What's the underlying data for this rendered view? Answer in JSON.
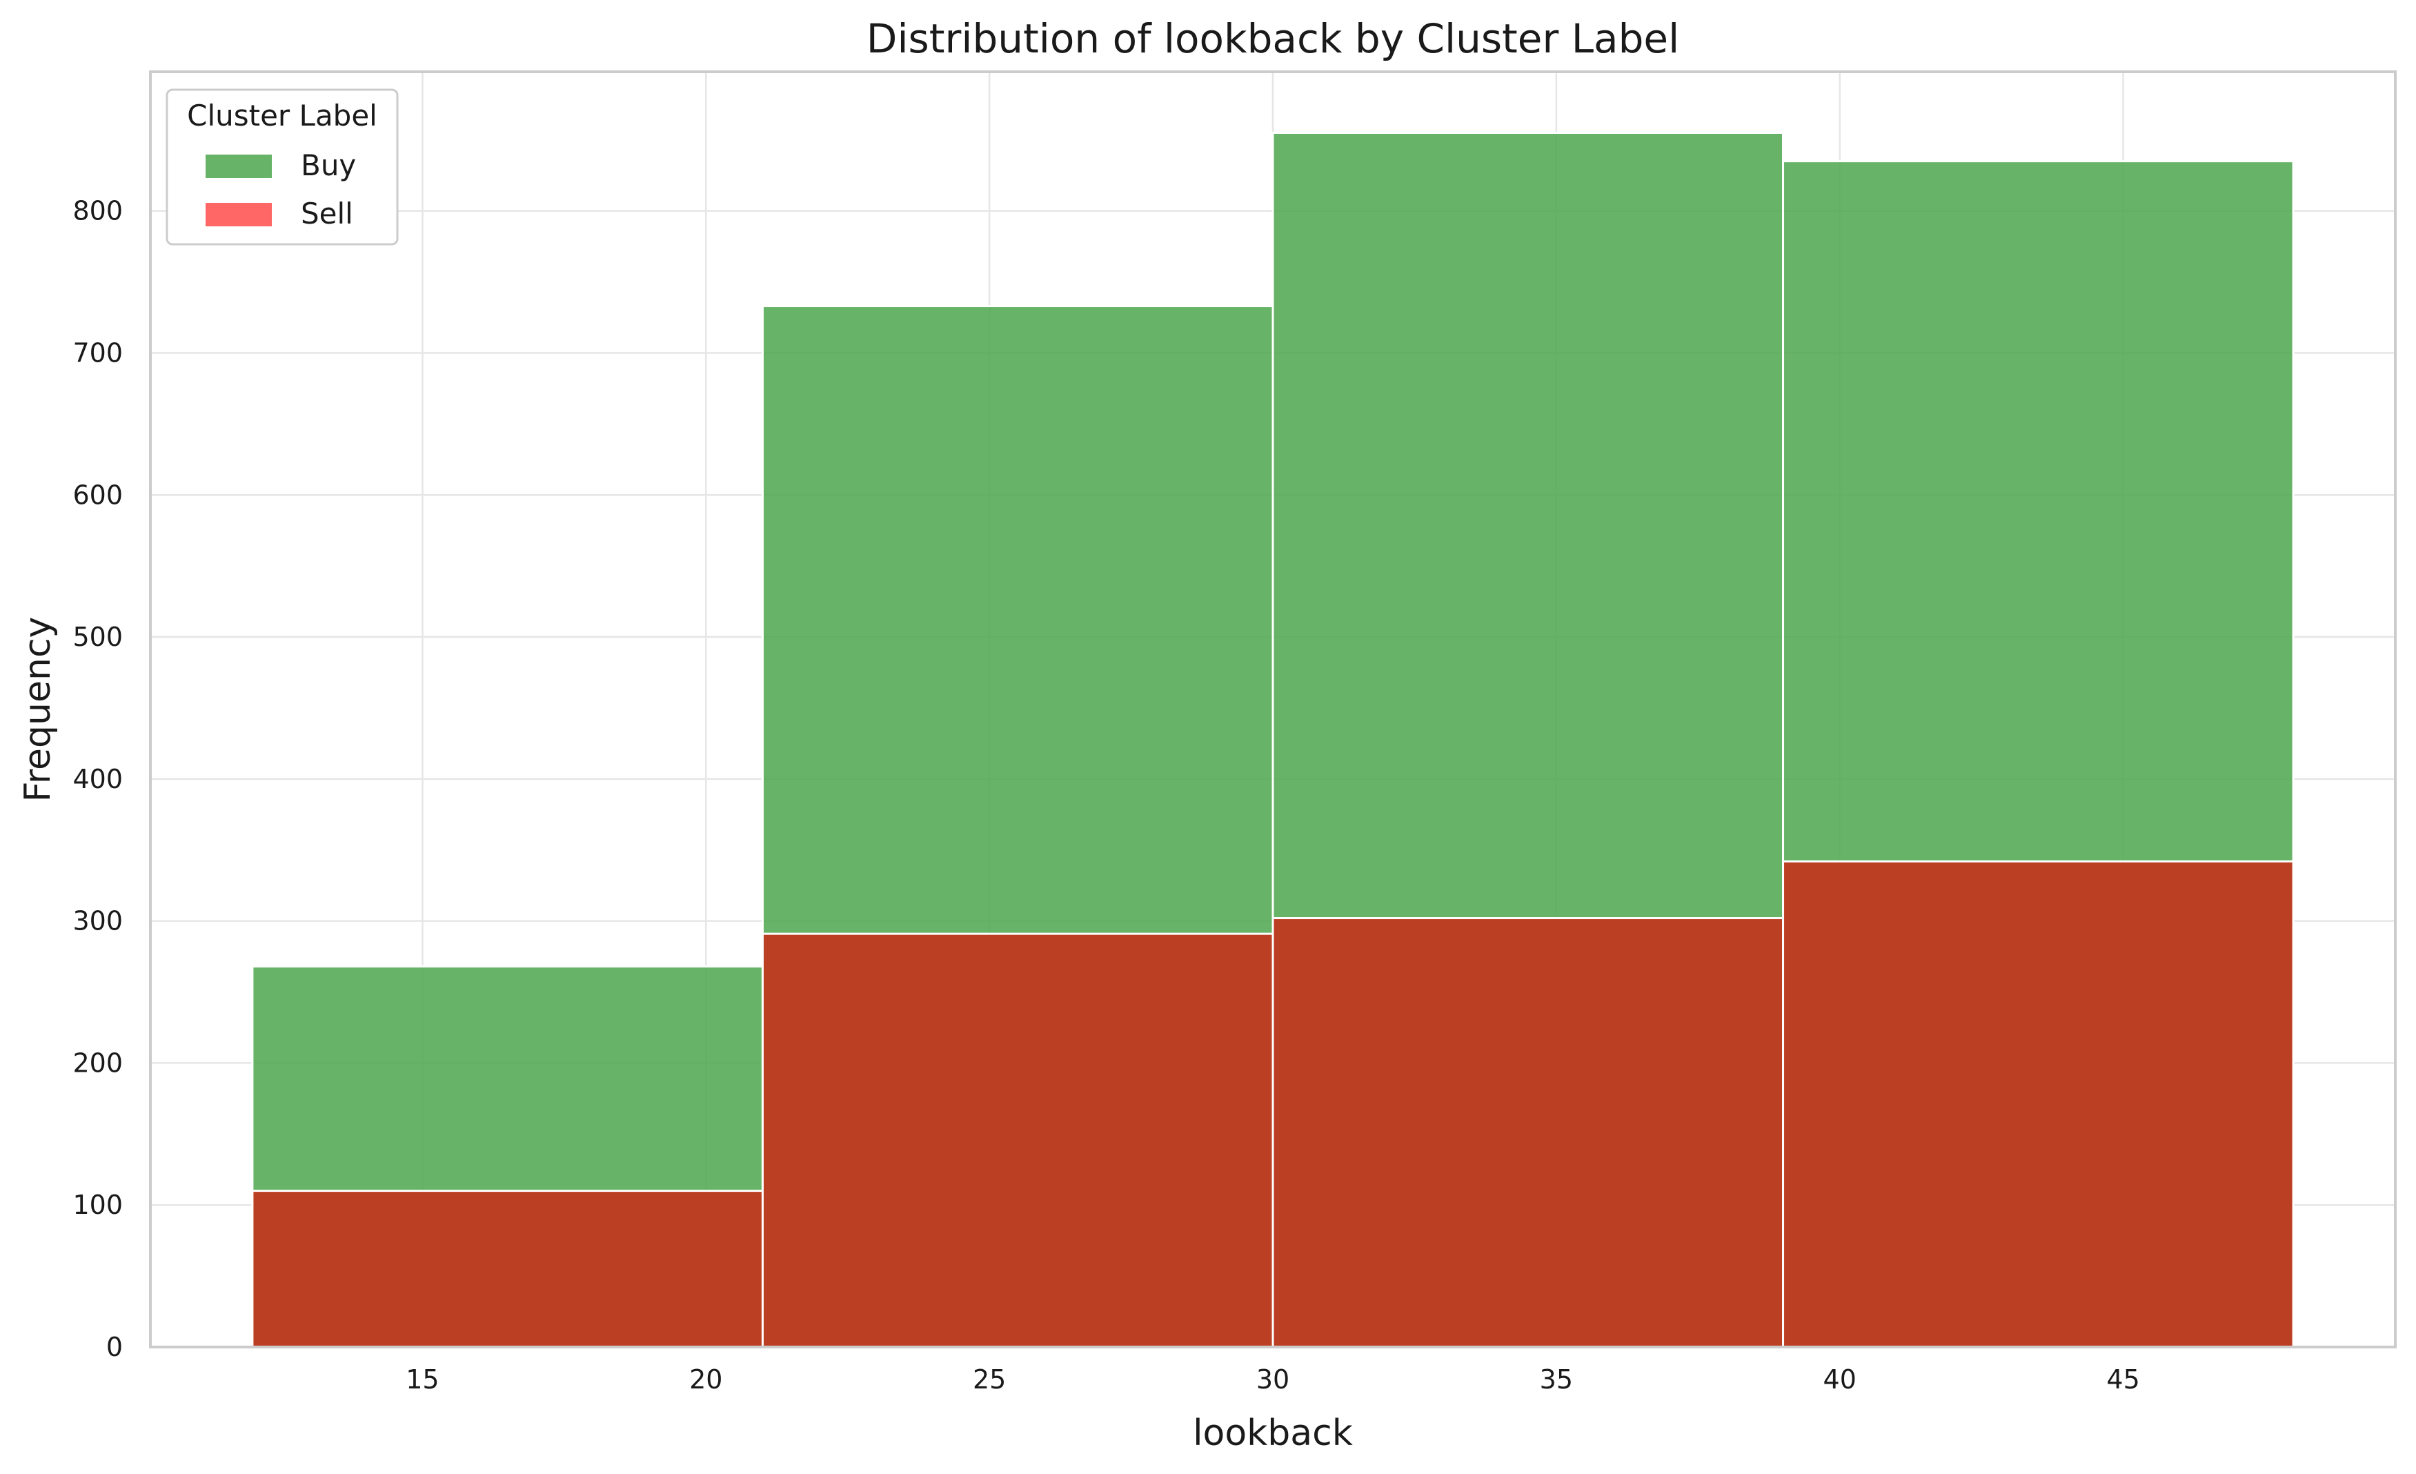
{
  "chart_data": {
    "type": "histogram",
    "title": "Distribution of lookback by Cluster Label",
    "xlabel": "lookback",
    "ylabel": "Frequency",
    "xlim": [
      10.2,
      49.8
    ],
    "ylim": [
      0,
      898
    ],
    "xticks": [
      15,
      20,
      25,
      30,
      35,
      40,
      45
    ],
    "yticks": [
      0,
      100,
      200,
      300,
      400,
      500,
      600,
      700,
      800
    ],
    "grid": true,
    "legend": {
      "title": "Cluster Label",
      "position": "top-left"
    },
    "bins": [
      [
        12,
        21
      ],
      [
        21,
        30
      ],
      [
        30,
        39
      ],
      [
        39,
        48
      ]
    ],
    "series": [
      {
        "name": "Buy",
        "color": "#4ca64c",
        "values": [
          268,
          733,
          855,
          835
        ]
      },
      {
        "name": "Sell",
        "color": "#ff6666",
        "values": [
          110,
          291,
          302,
          342
        ]
      }
    ]
  }
}
